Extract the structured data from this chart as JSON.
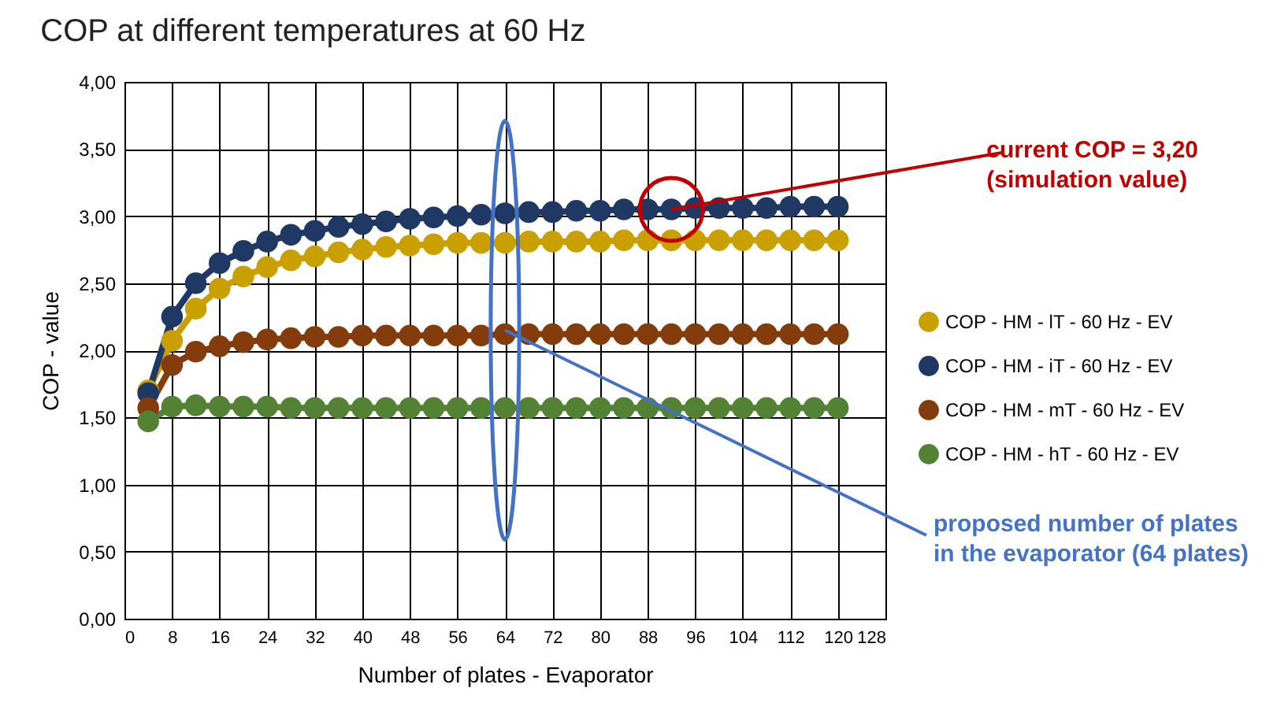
{
  "chart_data": {
    "type": "line",
    "title": "COP at different temperatures at 60 Hz",
    "xlabel": "Number of plates - Evaporator",
    "ylabel": "COP - value",
    "x": [
      4,
      8,
      12,
      16,
      20,
      24,
      28,
      32,
      36,
      40,
      44,
      48,
      52,
      56,
      60,
      64,
      68,
      72,
      76,
      80,
      84,
      88,
      92,
      96,
      100,
      104,
      108,
      112,
      116,
      120
    ],
    "series": [
      {
        "name": "COP - HM - lT - 60 Hz - EV",
        "color": "#c9a000",
        "values": [
          1.7,
          2.07,
          2.31,
          2.46,
          2.55,
          2.62,
          2.67,
          2.7,
          2.73,
          2.75,
          2.77,
          2.78,
          2.79,
          2.8,
          2.8,
          2.8,
          2.81,
          2.81,
          2.81,
          2.81,
          2.82,
          2.82,
          2.82,
          2.82,
          2.82,
          2.82,
          2.82,
          2.82,
          2.82,
          2.82
        ]
      },
      {
        "name": "COP - HM - iT - 60 Hz - EV",
        "color": "#1f3864",
        "values": [
          1.68,
          2.25,
          2.5,
          2.65,
          2.74,
          2.81,
          2.86,
          2.89,
          2.92,
          2.94,
          2.96,
          2.98,
          2.99,
          3.0,
          3.01,
          3.02,
          3.03,
          3.03,
          3.04,
          3.04,
          3.05,
          3.05,
          3.05,
          3.06,
          3.06,
          3.06,
          3.06,
          3.07,
          3.07,
          3.07
        ]
      },
      {
        "name": "COP - HM - mT - 60 Hz - EV",
        "color": "#843c0c",
        "values": [
          1.57,
          1.89,
          1.99,
          2.03,
          2.06,
          2.08,
          2.09,
          2.1,
          2.1,
          2.11,
          2.11,
          2.11,
          2.11,
          2.11,
          2.11,
          2.12,
          2.12,
          2.12,
          2.12,
          2.12,
          2.12,
          2.12,
          2.12,
          2.12,
          2.12,
          2.12,
          2.12,
          2.12,
          2.12,
          2.12
        ]
      },
      {
        "name": "COP - HM - hT - 60 Hz - EV",
        "color": "#548235",
        "values": [
          1.47,
          1.58,
          1.59,
          1.58,
          1.58,
          1.58,
          1.57,
          1.57,
          1.57,
          1.57,
          1.57,
          1.57,
          1.57,
          1.57,
          1.57,
          1.57,
          1.57,
          1.57,
          1.57,
          1.57,
          1.57,
          1.57,
          1.57,
          1.57,
          1.57,
          1.57,
          1.57,
          1.57,
          1.57,
          1.57
        ]
      }
    ],
    "xlim": [
      0,
      128
    ],
    "xticks": [
      0,
      8,
      16,
      24,
      32,
      40,
      48,
      56,
      64,
      72,
      80,
      88,
      96,
      104,
      112,
      120,
      128
    ],
    "ylim": [
      0,
      4
    ],
    "yticks": [
      {
        "value": 0,
        "label": "0,00"
      },
      {
        "value": 0.5,
        "label": "0,50"
      },
      {
        "value": 1,
        "label": "1,00"
      },
      {
        "value": 1.5,
        "label": "1,50"
      },
      {
        "value": 2,
        "label": "2,00"
      },
      {
        "value": 2.5,
        "label": "2,50"
      },
      {
        "value": 3,
        "label": "3,00"
      },
      {
        "value": 3.5,
        "label": "3,50"
      },
      {
        "value": 4,
        "label": "4,00"
      }
    ],
    "grid": true,
    "legend": "right",
    "marker": "circle",
    "line_style": "solid",
    "annotations": [
      {
        "text": "current COP = 3,20\n(simulation value)",
        "x": 92,
        "y": 3.05
      },
      {
        "text": "proposed number of plates\nin the evaporator (64 plates)",
        "x": 64,
        "y": 2.15
      }
    ]
  }
}
